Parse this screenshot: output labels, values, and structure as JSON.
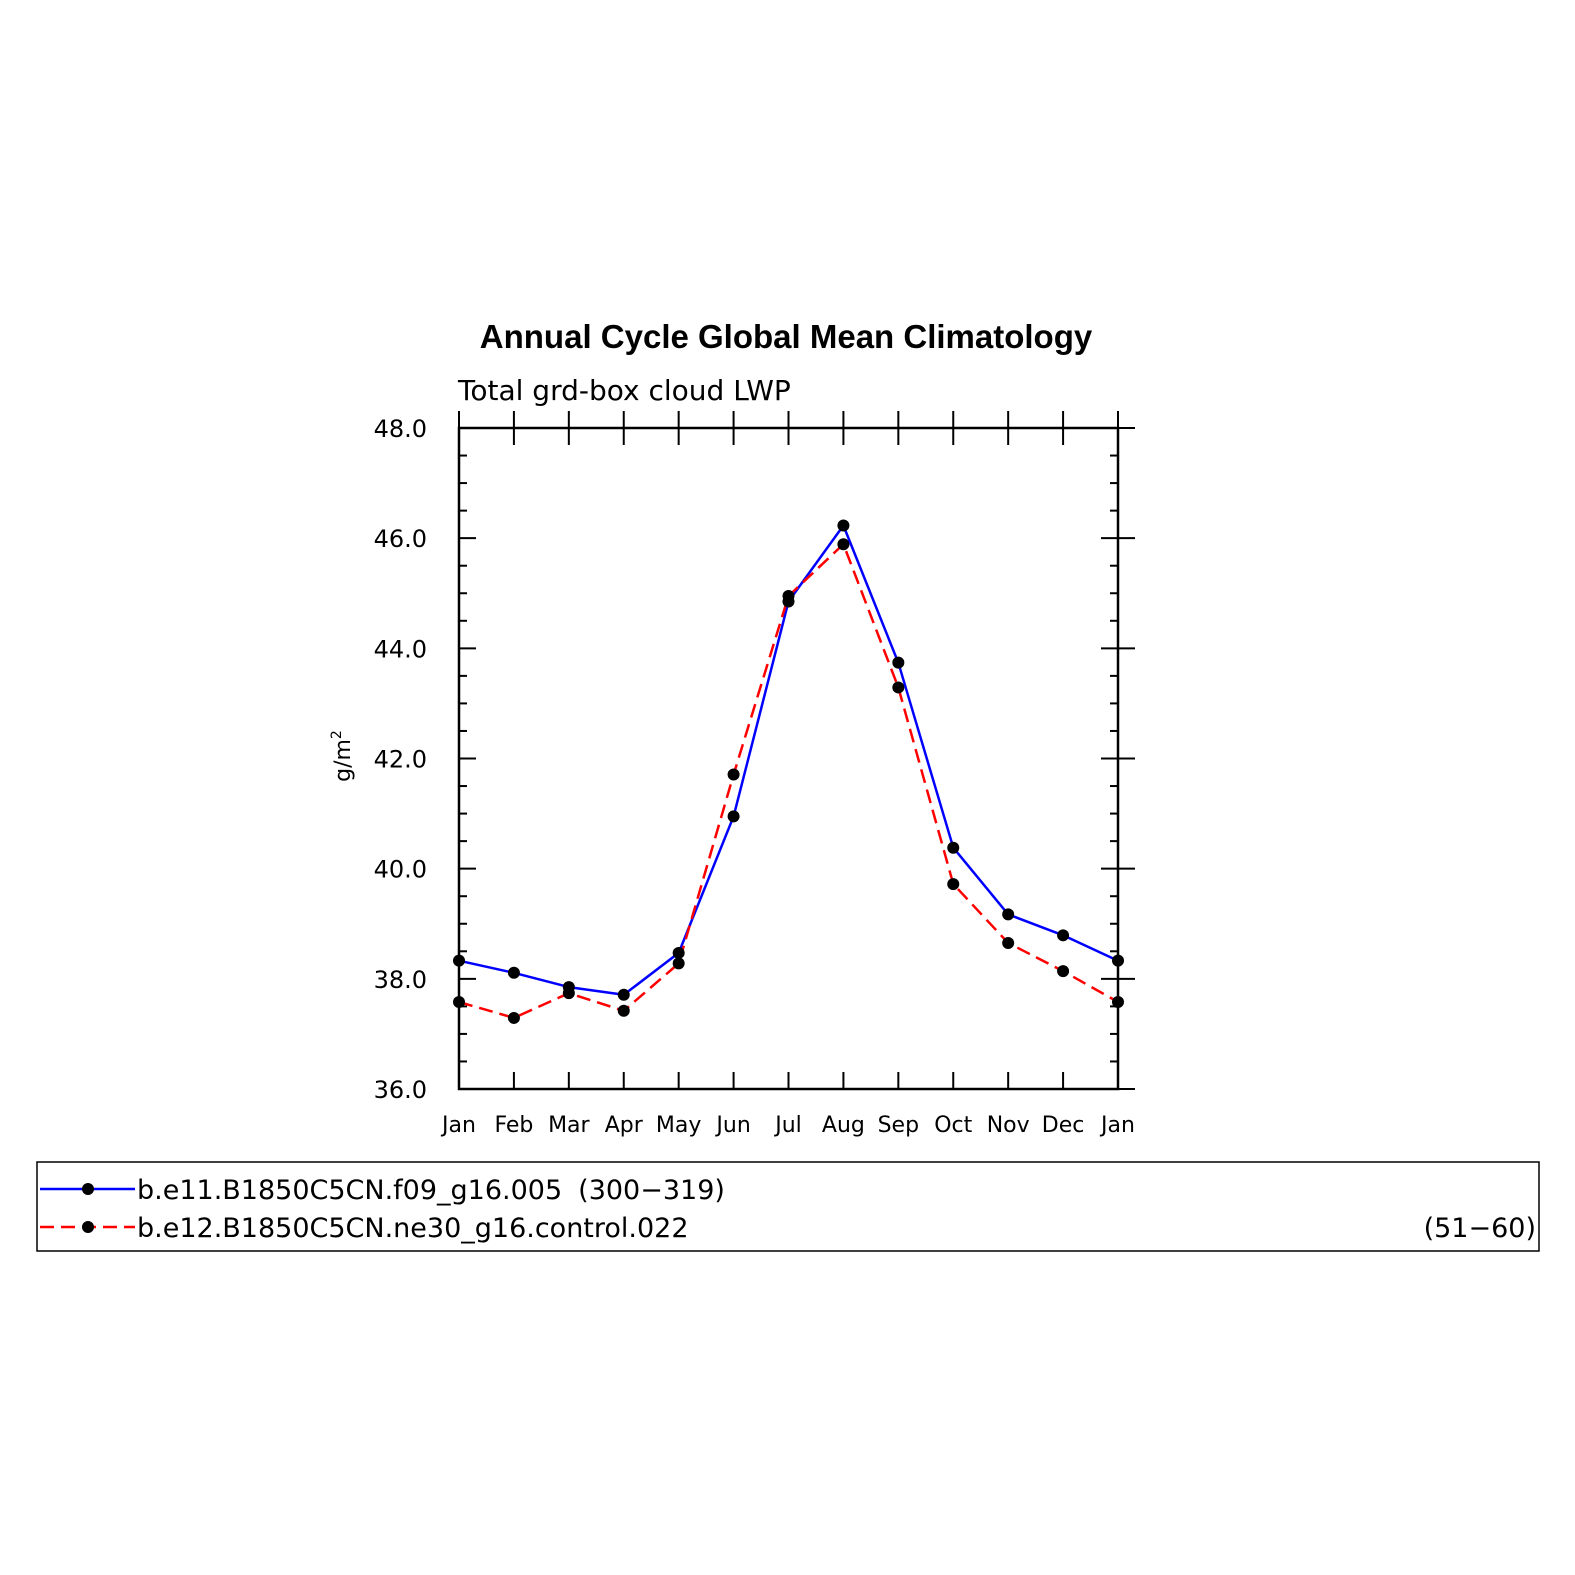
{
  "chart_data": {
    "type": "line",
    "title": "Annual Cycle Global Mean Climatology",
    "subtitle": "Total grd-box cloud LWP",
    "ylabel": "g/m",
    "ylabel_superscript": "2",
    "ylim": [
      36.0,
      48.0
    ],
    "yticks": [
      "36.0",
      "38.0",
      "40.0",
      "42.0",
      "44.0",
      "46.0",
      "48.0"
    ],
    "x": [
      "Jan",
      "Feb",
      "Mar",
      "Apr",
      "May",
      "Jun",
      "Jul",
      "Aug",
      "Sep",
      "Oct",
      "Nov",
      "Dec",
      "Jan"
    ],
    "grid": false,
    "legend_position": "bottom",
    "series": [
      {
        "name": "b.e11.B1850C5CN.f09_g16.005 (300-319)",
        "legend_label": "b.e11.B1850C5CN.f09_g16.005",
        "legend_years": "(300−319)",
        "color": "#0000ff",
        "dash": "solid",
        "values": [
          38.33,
          38.11,
          37.85,
          37.71,
          38.47,
          40.95,
          44.85,
          46.23,
          43.74,
          40.38,
          39.17,
          38.79,
          38.33
        ]
      },
      {
        "name": "b.e12.B1850C5CN.ne30_g16.control.022 (51-60)",
        "legend_label": "b.e12.B1850C5CN.ne30_g16.control.022",
        "legend_years": "(51−60)",
        "color": "#ff0000",
        "dash": "dashed",
        "values": [
          37.58,
          37.29,
          37.74,
          37.42,
          38.28,
          41.71,
          44.95,
          45.89,
          43.29,
          39.72,
          38.65,
          38.14,
          37.58
        ]
      }
    ]
  }
}
